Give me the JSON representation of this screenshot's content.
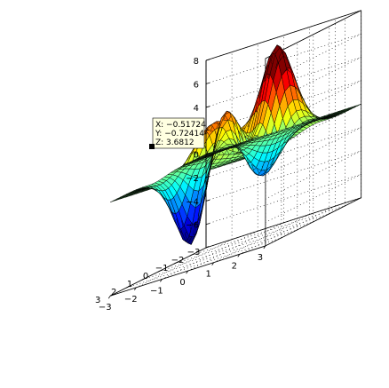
{
  "chart_data": {
    "type": "surface",
    "function": "peaks",
    "title": "",
    "xlabel": "",
    "ylabel": "",
    "zlabel": "",
    "xlim": [
      -3,
      3
    ],
    "ylim": [
      -3,
      3
    ],
    "zlim": [
      -8,
      8
    ],
    "grid": true,
    "colormap": "jet",
    "x_ticks": [
      "−3",
      "−2",
      "−1",
      "0",
      "1",
      "2",
      "3"
    ],
    "y_ticks": [
      "−3",
      "−2",
      "−1",
      "0",
      "1",
      "2",
      "3"
    ],
    "z_ticks": [
      "8",
      "6",
      "4",
      "2",
      "0",
      "−2",
      "−4",
      "−6"
    ],
    "datatip": {
      "x": -0.51724,
      "y": -0.72414,
      "z": 3.6812,
      "lines": [
        "X: −0.51724",
        "Y: −0.72414",
        "Z: 3.6812"
      ]
    }
  }
}
